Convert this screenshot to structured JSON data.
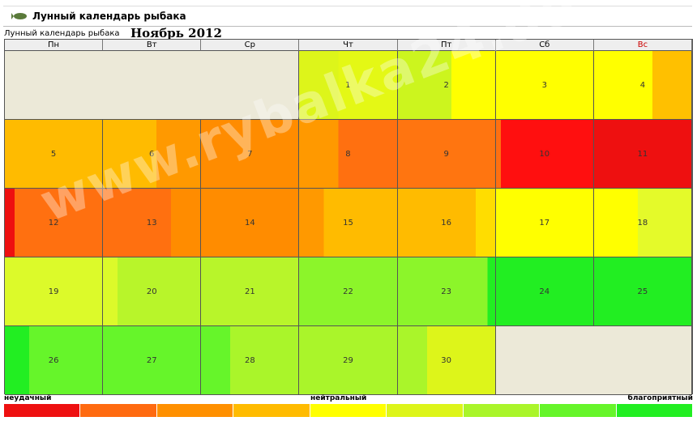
{
  "header": {
    "title": "Лунный календарь рыбака"
  },
  "calendar": {
    "caption": "Лунный календарь рыбака",
    "month": "Ноябрь 2012",
    "weekdays": [
      "Пн",
      "Вт",
      "Ср",
      "Чт",
      "Пт",
      "Сб",
      "Вс"
    ],
    "holiday_color": "#cc0000",
    "empty_color": "#ece9d8",
    "weeks": [
      [
        null,
        null,
        null,
        {
          "day": 1,
          "colors": [
            "#ddf51a",
            "#e4f815"
          ]
        },
        {
          "day": 2,
          "colors": [
            "#ccf51e",
            "#ffff00"
          ]
        },
        {
          "day": 3,
          "colors": [
            "#ffff00",
            "#ffff00"
          ]
        },
        {
          "day": 4,
          "colors": [
            "#ffff00",
            "#ffc000"
          ]
        }
      ],
      [
        {
          "day": 5,
          "colors": [
            "#ffbb00",
            "#ffbb00"
          ]
        },
        {
          "day": 6,
          "colors": [
            "#ffbb00",
            "#ff9900"
          ]
        },
        {
          "day": 7,
          "colors": [
            "#ff8c00",
            "#ff8c00"
          ]
        },
        {
          "day": 8,
          "colors": [
            "#ff9900",
            "#ff7010"
          ]
        },
        {
          "day": 9,
          "colors": [
            "#ff7510",
            "#ff7510"
          ]
        },
        {
          "day": 10,
          "colors": [
            "#ff7010",
            "#ff0f0f"
          ]
        },
        {
          "day": 11,
          "colors": [
            "#ee1010",
            "#ee1010"
          ]
        }
      ],
      [
        {
          "day": 12,
          "colors": [
            "#ee1010",
            "#ff7010"
          ]
        },
        {
          "day": 13,
          "colors": [
            "#ff7010",
            "#ff8c00"
          ]
        },
        {
          "day": 14,
          "colors": [
            "#ff8c00",
            "#ff8c00"
          ]
        },
        {
          "day": 15,
          "colors": [
            "#ff9900",
            "#ffbb00"
          ]
        },
        {
          "day": 16,
          "colors": [
            "#ffbb00",
            "#ffdd00"
          ]
        },
        {
          "day": 17,
          "colors": [
            "#ffff00",
            "#ffff00"
          ]
        },
        {
          "day": 18,
          "colors": [
            "#ffff00",
            "#e4fa2a"
          ]
        }
      ],
      [
        {
          "day": 19,
          "colors": [
            "#dcfa2a",
            "#dcfa2a"
          ]
        },
        {
          "day": 20,
          "colors": [
            "#dcfa2a",
            "#b8f52a"
          ]
        },
        {
          "day": 21,
          "colors": [
            "#b8f52a",
            "#b8f52a"
          ]
        },
        {
          "day": 22,
          "colors": [
            "#8cf52a",
            "#8cf52a"
          ]
        },
        {
          "day": 23,
          "colors": [
            "#8cf52a",
            "#22ee22"
          ]
        },
        {
          "day": 24,
          "colors": [
            "#22ee22",
            "#22ee22"
          ]
        },
        {
          "day": 25,
          "colors": [
            "#22ee22",
            "#22ee22"
          ]
        }
      ],
      [
        {
          "day": 26,
          "colors": [
            "#22ee22",
            "#66f52a"
          ]
        },
        {
          "day": 27,
          "colors": [
            "#66f52a",
            "#66f52a"
          ]
        },
        {
          "day": 28,
          "colors": [
            "#66f52a",
            "#aaf52a"
          ]
        },
        {
          "day": 29,
          "colors": [
            "#aaf52a",
            "#aaf52a"
          ]
        },
        {
          "day": 30,
          "colors": [
            "#aaf52a",
            "#ddf51a"
          ]
        },
        null,
        null
      ]
    ]
  },
  "legend": {
    "labels": [
      "неудачный",
      "нейтральный",
      "благоприятный"
    ],
    "colors": [
      "#ee1010",
      "#ff6a10",
      "#ff9000",
      "#ffbb00",
      "#ffff00",
      "#ddf51a",
      "#aaf52a",
      "#66f52a",
      "#22ee22"
    ]
  },
  "watermark": "www.rybalka24.de"
}
